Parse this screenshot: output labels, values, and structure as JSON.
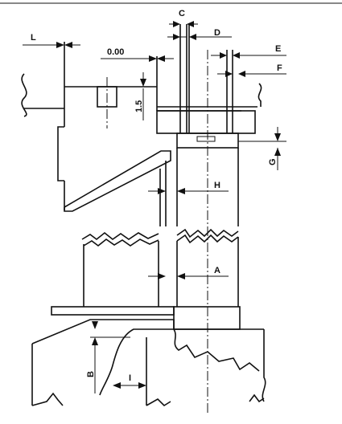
{
  "labels": {
    "L": "L",
    "C": "C",
    "D": "D",
    "E": "E",
    "F": "F",
    "zero": "0.00",
    "offset": "1.5",
    "G": "G",
    "H": "H",
    "A": "A",
    "B": "B",
    "I": "I"
  },
  "style": {
    "ink": "#111111",
    "background": "#ffffff"
  }
}
